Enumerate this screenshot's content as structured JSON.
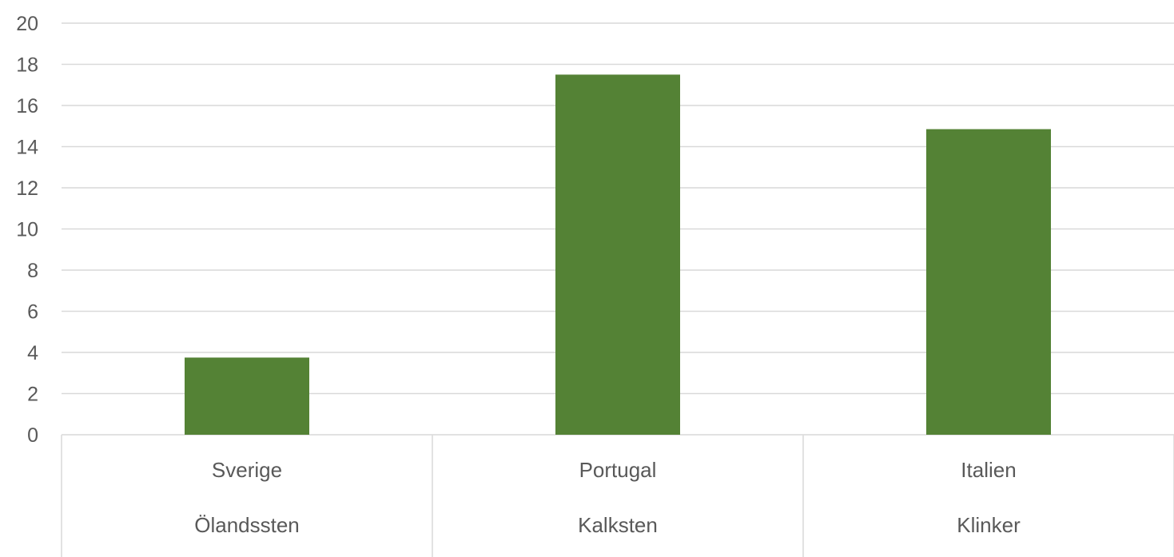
{
  "chart_data": {
    "type": "bar",
    "categories": [
      {
        "top": "Sverige",
        "bottom": "Ölandssten"
      },
      {
        "top": "Portugal",
        "bottom": "Kalksten"
      },
      {
        "top": "Italien",
        "bottom": "Klinker"
      }
    ],
    "values": [
      3.75,
      17.5,
      14.85
    ],
    "yticks": [
      "0",
      "2",
      "4",
      "6",
      "8",
      "10",
      "12",
      "14",
      "16",
      "18",
      "20"
    ],
    "ylim": [
      0,
      20
    ],
    "title": "",
    "xlabel": "",
    "ylabel": "",
    "grid": true,
    "legend": "none",
    "colors": {
      "bar": "#548235",
      "grid": "#d9d9d9",
      "text": "#595959"
    }
  }
}
